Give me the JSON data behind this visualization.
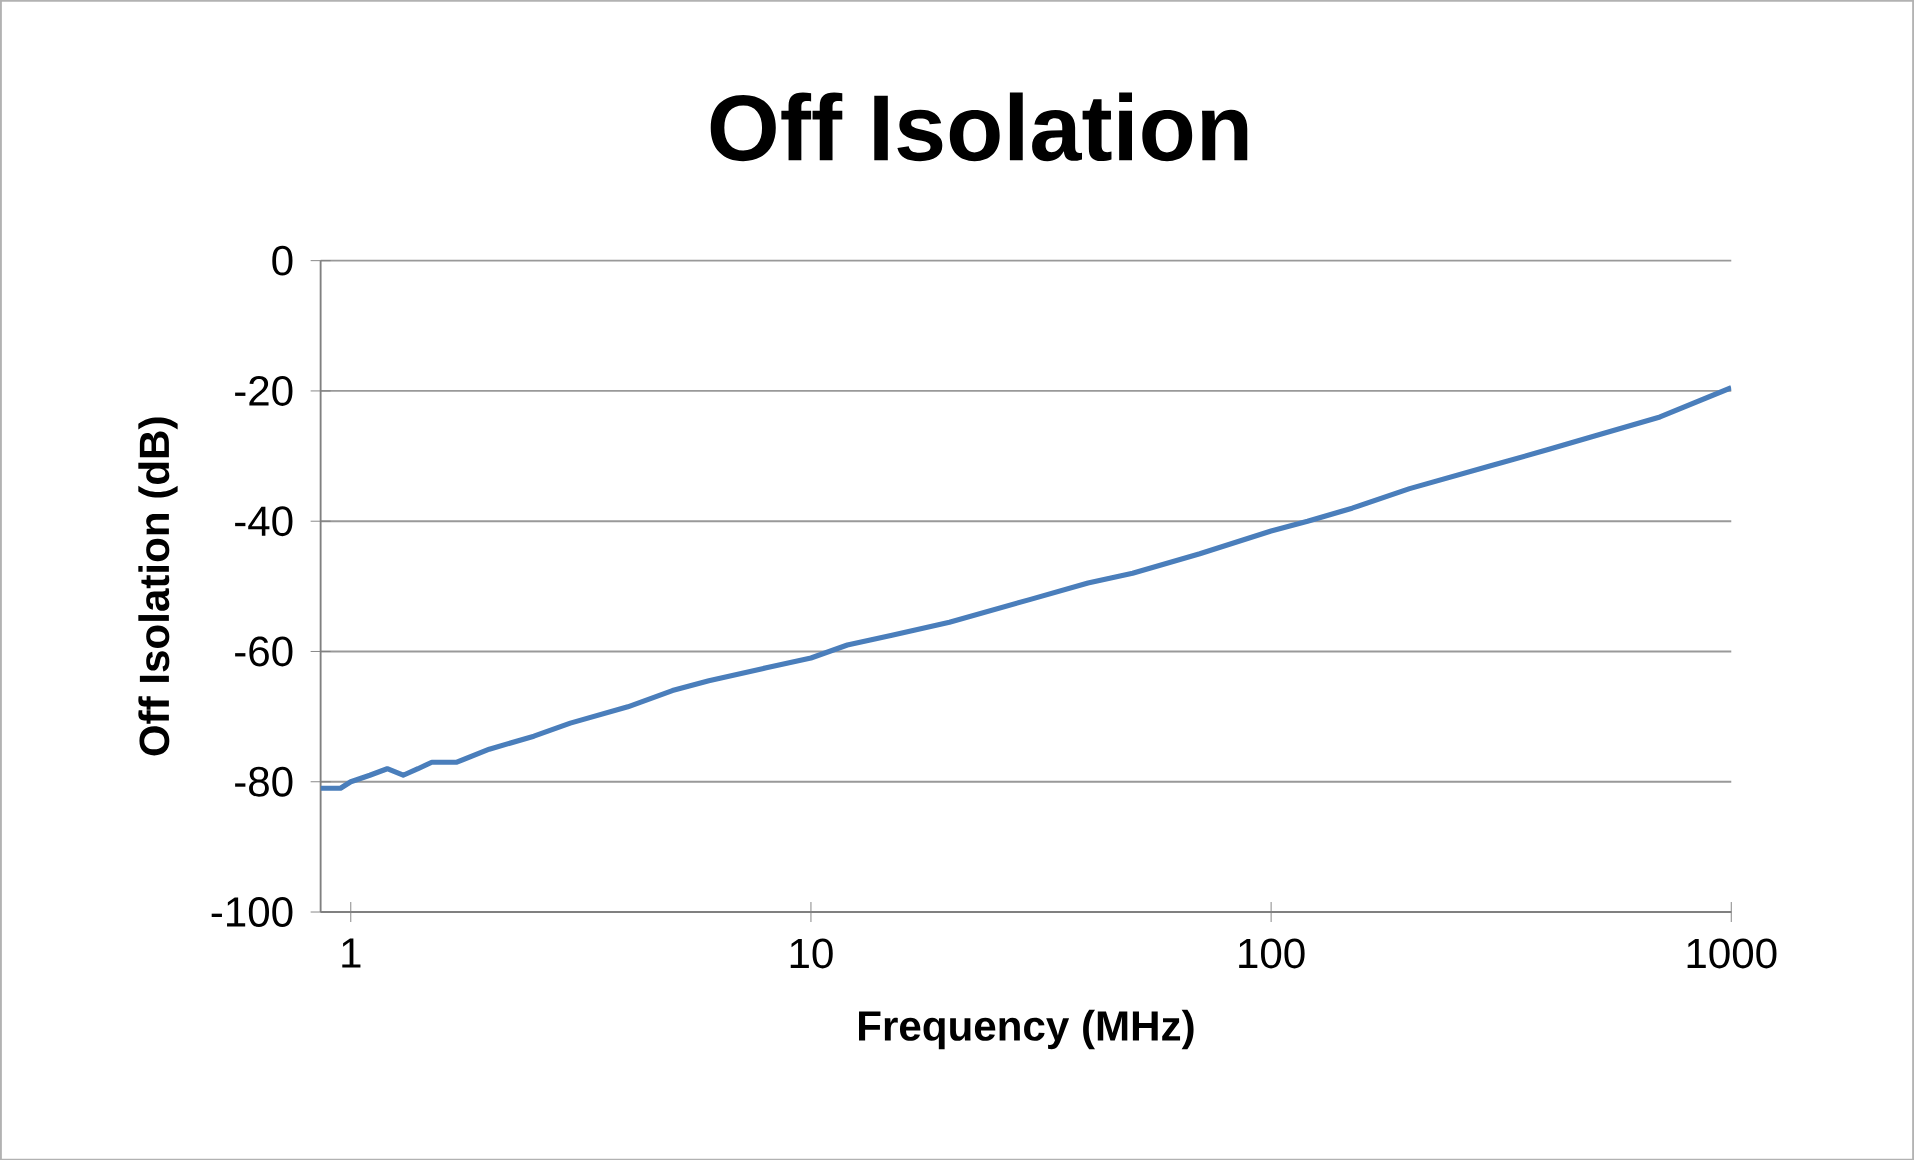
{
  "chart_data": {
    "type": "line",
    "title": "Off Isolation",
    "xlabel": "Frequency (MHz)",
    "ylabel": "Off Isolation (dB)",
    "log": "x",
    "grid": "y",
    "marker": "none",
    "line_style": "solid",
    "xlim": [
      0.86,
      1000
    ],
    "xticks": [
      1,
      10,
      100,
      1000
    ],
    "ylim": [
      -100,
      0
    ],
    "yticks": [
      -100,
      -80,
      -60,
      -40,
      -20,
      0
    ],
    "series": [
      {
        "color": "#4a7ebb",
        "x": [
          0.86,
          0.95,
          1.0,
          1.1,
          1.2,
          1.3,
          1.4,
          1.5,
          1.7,
          2,
          2.5,
          3,
          4,
          5,
          6,
          8,
          10,
          12,
          15,
          20,
          30,
          40,
          50,
          70,
          100,
          120,
          150,
          200,
          300,
          400,
          500,
          700,
          1000
        ],
        "values": [
          -81,
          -81,
          -80,
          -79,
          -78,
          -79,
          -78,
          -77,
          -77,
          -75,
          -73,
          -71,
          -68.5,
          -66,
          -64.5,
          -62.5,
          -61,
          -59,
          -57.5,
          -55.5,
          -52,
          -49.5,
          -48,
          -45,
          -41.5,
          -40,
          -38,
          -35,
          -31.5,
          -29,
          -27,
          -24,
          -19.5
        ]
      }
    ]
  }
}
